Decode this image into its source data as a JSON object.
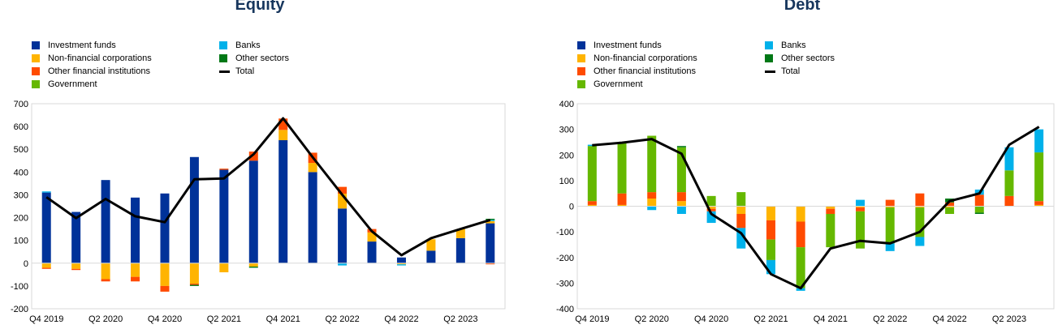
{
  "colors": {
    "investment_funds": "#003299",
    "non_financial_corporations": "#ffb400",
    "other_financial_institutions": "#ff4b00",
    "government": "#65b800",
    "banks": "#00b1ea",
    "other_sectors": "#007816",
    "total": "#000000"
  },
  "chart_data": [
    {
      "type": "bar",
      "title": "Equity",
      "stacked": true,
      "ylim": [
        -200,
        700
      ],
      "yticks": [
        -200,
        -100,
        0,
        100,
        200,
        300,
        400,
        500,
        600,
        700
      ],
      "categories": [
        "Q4 2019",
        "Q1 2020",
        "Q2 2020",
        "Q3 2020",
        "Q4 2020",
        "Q1 2021",
        "Q2 2021",
        "Q3 2021",
        "Q4 2021",
        "Q1 2022",
        "Q2 2022",
        "Q3 2022",
        "Q4 2022",
        "Q1 2023",
        "Q2 2023",
        "Q3 2023"
      ],
      "xtick_labels": [
        "Q4 2019",
        "",
        "Q2 2020",
        "",
        "Q4 2020",
        "",
        "Q2 2021",
        "",
        "Q4 2021",
        "",
        "Q2 2022",
        "",
        "Q4 2022",
        "",
        "Q2 2023",
        ""
      ],
      "grid": false,
      "legend": [
        {
          "label": "Investment funds",
          "key": "investment_funds",
          "kind": "bar"
        },
        {
          "label": "Non-financial corporations",
          "key": "non_financial_corporations",
          "kind": "bar"
        },
        {
          "label": "Other financial institutions",
          "key": "other_financial_institutions",
          "kind": "bar"
        },
        {
          "label": "Government",
          "key": "government",
          "kind": "bar"
        },
        {
          "label": "Banks",
          "key": "banks",
          "kind": "bar"
        },
        {
          "label": "Other sectors",
          "key": "other_sectors",
          "kind": "bar"
        },
        {
          "label": "Total",
          "key": "total",
          "kind": "line"
        }
      ],
      "series": [
        {
          "name": "Investment funds",
          "key": "investment_funds",
          "values": [
            310,
            225,
            365,
            288,
            306,
            466,
            410,
            450,
            540,
            400,
            240,
            95,
            25,
            55,
            110,
            175
          ]
        },
        {
          "name": "Non-financial corporations",
          "key": "non_financial_corporations",
          "values": [
            -20,
            -25,
            -70,
            -60,
            -100,
            -90,
            -40,
            -15,
            45,
            40,
            65,
            40,
            -5,
            50,
            40,
            10
          ]
        },
        {
          "name": "Other financial institutions",
          "key": "other_financial_institutions",
          "values": [
            -5,
            -5,
            -10,
            -20,
            -25,
            -5,
            5,
            40,
            50,
            45,
            30,
            15,
            0,
            0,
            0,
            -5
          ]
        },
        {
          "name": "Government",
          "key": "government",
          "values": [
            0,
            0,
            0,
            0,
            0,
            0,
            0,
            0,
            0,
            0,
            0,
            0,
            0,
            0,
            0,
            0
          ]
        },
        {
          "name": "Banks",
          "key": "banks",
          "values": [
            5,
            0,
            0,
            0,
            0,
            0,
            0,
            0,
            0,
            0,
            -10,
            0,
            -5,
            0,
            0,
            5
          ]
        },
        {
          "name": "Other sectors",
          "key": "other_sectors",
          "values": [
            0,
            0,
            0,
            0,
            0,
            -5,
            0,
            -5,
            0,
            0,
            0,
            0,
            0,
            0,
            0,
            5
          ]
        }
      ],
      "total": [
        290,
        198,
        282,
        206,
        180,
        368,
        372,
        478,
        636,
        465,
        300,
        140,
        35,
        110,
        150,
        190
      ]
    },
    {
      "type": "bar",
      "title": "Debt",
      "stacked": true,
      "ylim": [
        -400,
        400
      ],
      "yticks": [
        -400,
        -300,
        -200,
        -100,
        0,
        100,
        200,
        300,
        400
      ],
      "categories": [
        "Q4 2019",
        "Q1 2020",
        "Q2 2020",
        "Q3 2020",
        "Q4 2020",
        "Q1 2021",
        "Q2 2021",
        "Q3 2021",
        "Q4 2021",
        "Q1 2022",
        "Q2 2022",
        "Q3 2022",
        "Q4 2022",
        "Q1 2023",
        "Q2 2023",
        "Q3 2023"
      ],
      "xtick_labels": [
        "Q4 2019",
        "",
        "Q2 2020",
        "",
        "Q4 2020",
        "",
        "Q2 2021",
        "",
        "Q4 2021",
        "",
        "Q2 2022",
        "",
        "Q4 2022",
        "",
        "Q2 2023",
        ""
      ],
      "grid": false,
      "legend": [
        {
          "label": "Investment funds",
          "key": "investment_funds",
          "kind": "bar"
        },
        {
          "label": "Non-financial corporations",
          "key": "non_financial_corporations",
          "kind": "bar"
        },
        {
          "label": "Other financial institutions",
          "key": "other_financial_institutions",
          "kind": "bar"
        },
        {
          "label": "Government",
          "key": "government",
          "kind": "bar"
        },
        {
          "label": "Banks",
          "key": "banks",
          "kind": "bar"
        },
        {
          "label": "Other sectors",
          "key": "other_sectors",
          "kind": "bar"
        },
        {
          "label": "Total",
          "key": "total",
          "kind": "line"
        }
      ],
      "series": [
        {
          "name": "Investment funds",
          "key": "investment_funds",
          "values": [
            0,
            0,
            0,
            0,
            0,
            0,
            0,
            0,
            0,
            0,
            0,
            0,
            0,
            0,
            0,
            0
          ]
        },
        {
          "name": "Non-financial corporations",
          "key": "non_financial_corporations",
          "values": [
            5,
            5,
            30,
            20,
            -10,
            -30,
            -55,
            -60,
            -10,
            -5,
            -5,
            -5,
            -5,
            0,
            0,
            5
          ]
        },
        {
          "name": "Other financial institutions",
          "key": "other_financial_institutions",
          "values": [
            15,
            45,
            25,
            35,
            -10,
            -55,
            -75,
            -100,
            -20,
            -15,
            25,
            50,
            15,
            45,
            40,
            15
          ]
        },
        {
          "name": "Government",
          "key": "government",
          "values": [
            215,
            195,
            220,
            175,
            40,
            55,
            -80,
            -160,
            -130,
            -145,
            -140,
            -115,
            -25,
            -25,
            100,
            190
          ]
        },
        {
          "name": "Banks",
          "key": "banks",
          "values": [
            5,
            0,
            -15,
            -30,
            -45,
            -80,
            -55,
            -10,
            0,
            25,
            -30,
            -35,
            0,
            20,
            90,
            90
          ]
        },
        {
          "name": "Other sectors",
          "key": "other_sectors",
          "values": [
            0,
            0,
            0,
            5,
            0,
            0,
            0,
            0,
            0,
            0,
            0,
            0,
            15,
            -5,
            0,
            0
          ]
        }
      ],
      "total": [
        238,
        248,
        262,
        205,
        -30,
        -105,
        -265,
        -320,
        -165,
        -135,
        -145,
        -100,
        20,
        50,
        240,
        310
      ]
    }
  ]
}
